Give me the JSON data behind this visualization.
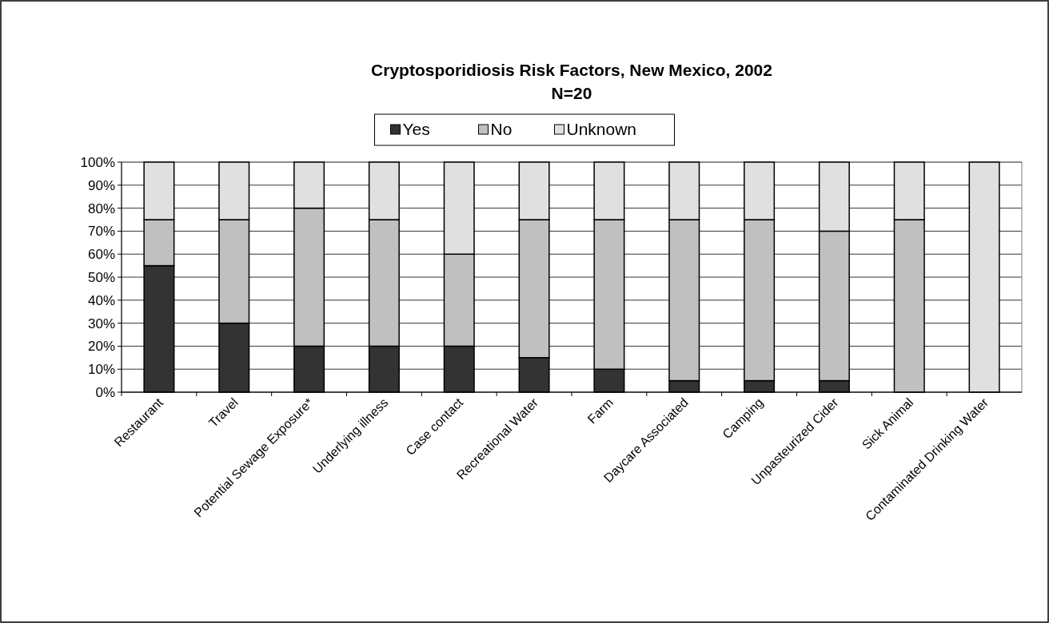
{
  "chart_data": {
    "type": "bar",
    "title": "Cryptosporidiosis Risk Factors, New Mexico, 2002",
    "subtitle": "N=20",
    "categories": [
      "Restaurant",
      "Travel",
      "Potential Sewage Exposure*",
      "Underlying illness",
      "Case contact",
      "Recreational Water",
      "Farm",
      "Daycare Associated",
      "Camping",
      "Unpasteurized Cider",
      "Sick Animal",
      "Contaminated Drinking Water"
    ],
    "series": [
      {
        "name": "Yes",
        "color": "#333333",
        "values": [
          55,
          30,
          20,
          20,
          20,
          15,
          10,
          5,
          5,
          5,
          0,
          0
        ]
      },
      {
        "name": "No",
        "color": "#c0c0c0",
        "values": [
          20,
          45,
          60,
          55,
          40,
          60,
          65,
          70,
          70,
          65,
          75,
          0
        ]
      },
      {
        "name": "Unknown",
        "color": "#e0e0e0",
        "values": [
          25,
          25,
          20,
          25,
          40,
          25,
          25,
          25,
          25,
          30,
          25,
          100
        ]
      }
    ],
    "stacked": true,
    "ylim": [
      0,
      100
    ],
    "yticks": [
      {
        "value": 0,
        "label": "0%"
      },
      {
        "value": 10,
        "label": "10%"
      },
      {
        "value": 20,
        "label": "20%"
      },
      {
        "value": 30,
        "label": "30%"
      },
      {
        "value": 40,
        "label": "40%"
      },
      {
        "value": 50,
        "label": "50%"
      },
      {
        "value": 60,
        "label": "60%"
      },
      {
        "value": 70,
        "label": "70%"
      },
      {
        "value": 80,
        "label": "80%"
      },
      {
        "value": 90,
        "label": "90%"
      },
      {
        "value": 100,
        "label": "100%"
      }
    ],
    "grid": "y",
    "legend": "top"
  }
}
